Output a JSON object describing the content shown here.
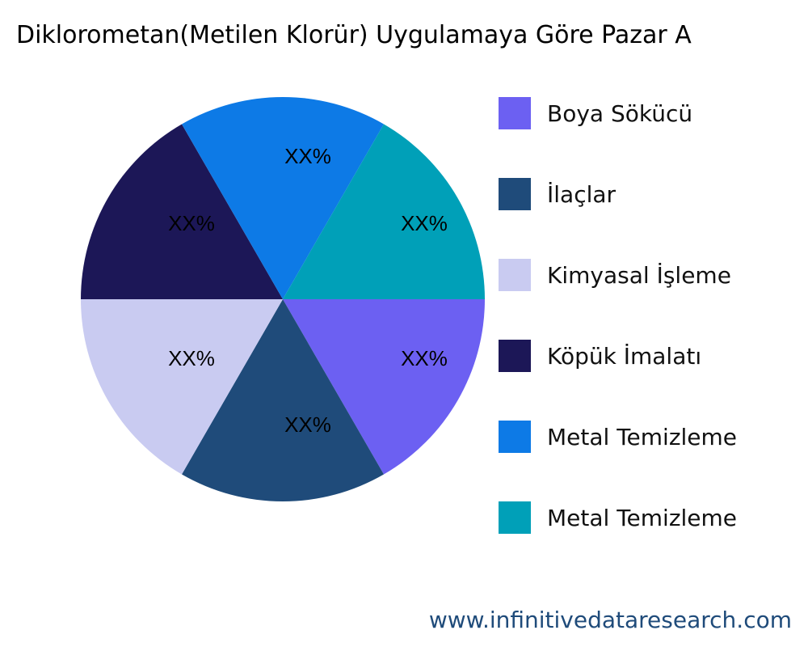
{
  "chart_data": {
    "type": "pie",
    "title": "Diklorometan(Metilen Klorür) Uygulamaya Göre Pazar A",
    "slices": [
      {
        "name": "Boya Sökücü",
        "value": 1,
        "label": "XX%",
        "color": "#6C60F2"
      },
      {
        "name": "İlaçlar",
        "value": 1,
        "label": "XX%",
        "color": "#1F4B7A"
      },
      {
        "name": "Kimyasal İşleme",
        "value": 1,
        "label": "XX%",
        "color": "#C9CBF1"
      },
      {
        "name": "Köpük İmalatı",
        "value": 1,
        "label": "XX%",
        "color": "#1C1757"
      },
      {
        "name": "Metal Temizleme",
        "value": 1,
        "label": "XX%",
        "color": "#0D7AE6"
      },
      {
        "name": "Metal Temizleme",
        "value": 1,
        "label": "XX%",
        "color": "#00A0B8"
      }
    ],
    "legend_position": "right"
  },
  "footer": "www.infinitivedataresearch.com"
}
